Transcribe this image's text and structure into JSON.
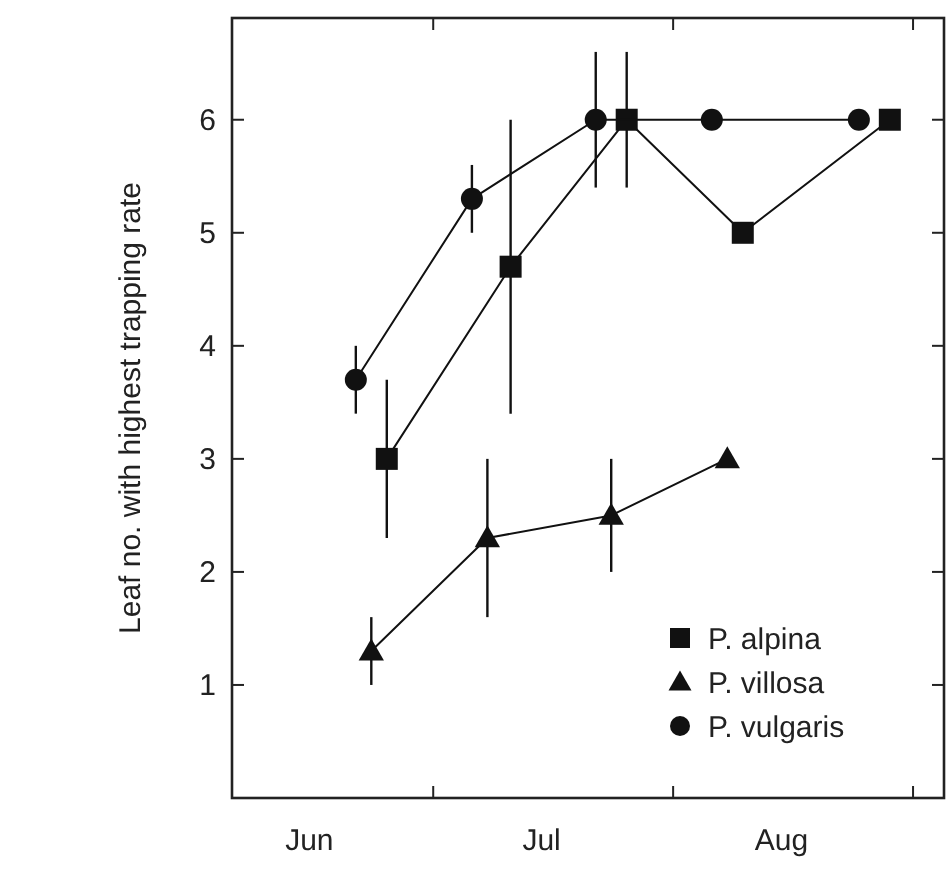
{
  "chart_data": {
    "type": "line",
    "ylabel": "Leaf no. with highest trapping rate",
    "xlim": [
      "--06-05",
      "--09-05"
    ],
    "xticks": [
      {
        "value": "--07-01",
        "label": null
      },
      {
        "value": "--08-01",
        "label": null
      },
      {
        "value": "--09-01",
        "label": null
      },
      {
        "value": "--06-15",
        "label": "Jun"
      },
      {
        "value": "--07-15",
        "label": "Jul"
      },
      {
        "value": "--08-15",
        "label": "Aug"
      }
    ],
    "ylim": [
      0,
      6.9
    ],
    "yticks": [
      1,
      2,
      3,
      4,
      5,
      6
    ],
    "grid": false,
    "legend": "bottom right",
    "line_style": "solid",
    "series": [
      {
        "name": "P. alpina",
        "color": "#111111",
        "marker": "square",
        "x": [
          "--06-25",
          "--07-11",
          "--07-26",
          "--08-10",
          "--08-29"
        ],
        "values": [
          3.0,
          4.7,
          6.0,
          5.0,
          6.0
        ],
        "errors": [
          0.7,
          1.3,
          0.6,
          null,
          null
        ]
      },
      {
        "name": "P. villosa",
        "color": "#111111",
        "marker": "triangle",
        "x": [
          "--06-23",
          "--07-08",
          "--07-24",
          "--08-08"
        ],
        "values": [
          1.3,
          2.3,
          2.5,
          3.0
        ],
        "errors": [
          [
            1.0,
            1.6
          ],
          0.7,
          0.5,
          null
        ]
      },
      {
        "name": "P. vulgaris",
        "color": "#111111",
        "marker": "circle",
        "x": [
          "--06-21",
          "--07-06",
          "--07-22",
          "--08-06",
          "--08-25"
        ],
        "values": [
          3.7,
          5.3,
          6.0,
          6.0,
          6.0
        ],
        "errors": [
          [
            3.4,
            4.0
          ],
          0.3,
          0.6,
          null,
          null
        ]
      }
    ]
  }
}
